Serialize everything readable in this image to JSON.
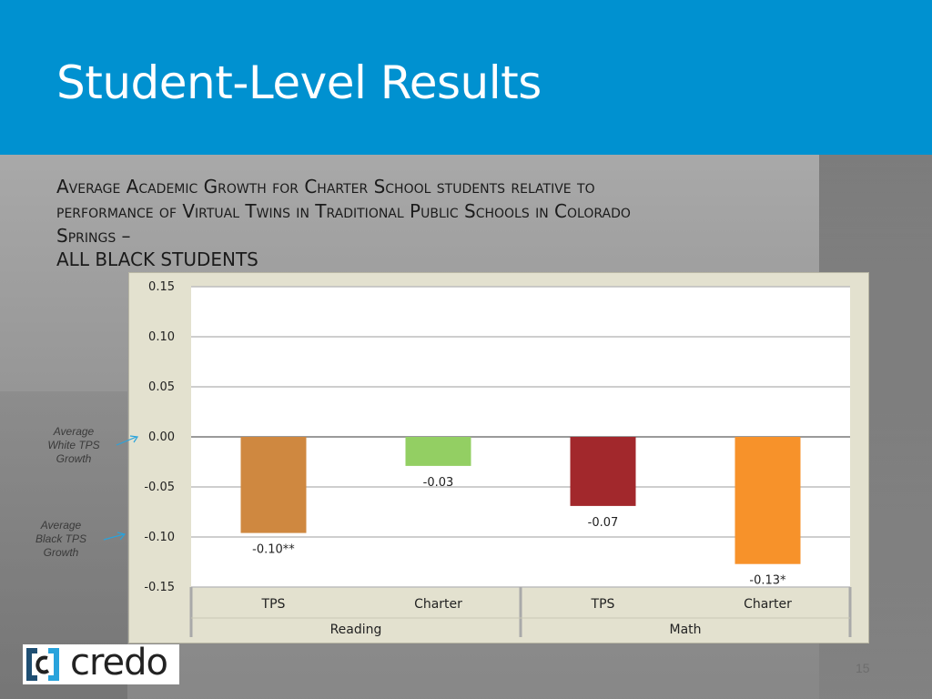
{
  "slide": {
    "title": "Student-Level Results",
    "subtitle_line1": "Average Academic Growth for Charter School students relative to",
    "subtitle_line2": "performance of Virtual Twins in Traditional Public Schools in Colorado",
    "subtitle_line3": "Springs –",
    "subtitle_line4": "ALL BLACK STUDENTS",
    "page_number": "15",
    "logo_text": "credo"
  },
  "annotations": {
    "white_tps": [
      "Average",
      "White TPS",
      "Growth"
    ],
    "black_tps": [
      "Average",
      "Black TPS",
      "Growth"
    ]
  },
  "colors": {
    "header": "#0091d0",
    "chart_background": "#e3e1cf",
    "plot_background": "#ffffff",
    "arrow": "#29a3dc"
  },
  "chart_data": {
    "type": "bar",
    "ylim": [
      -0.15,
      0.15
    ],
    "yticks": [
      "0.15",
      "0.10",
      "0.05",
      "0.00",
      "-0.05",
      "-0.10",
      "-0.15"
    ],
    "ytick_values": [
      0.15,
      0.1,
      0.05,
      0.0,
      -0.05,
      -0.1,
      -0.15
    ],
    "groups": [
      "Reading",
      "Math"
    ],
    "categories": [
      "TPS",
      "Charter",
      "TPS",
      "Charter"
    ],
    "values": [
      -0.096,
      -0.029,
      -0.069,
      -0.127
    ],
    "data_labels": [
      "-0.10**",
      "-0.03",
      "-0.07",
      "-0.13*"
    ],
    "bar_colors": [
      "#cf8840",
      "#93cf63",
      "#a2282c",
      "#f7922a"
    ],
    "grid": true
  }
}
